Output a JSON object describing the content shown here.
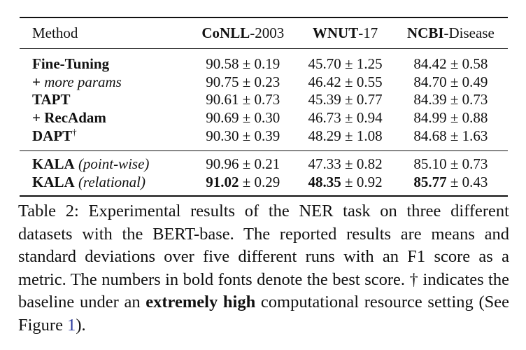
{
  "table": {
    "headers": {
      "method": "Method",
      "datasets": [
        {
          "bold": "Co",
          "rest": "NLL-2003",
          "boldTail": "NLL",
          "tail": "-2003"
        },
        {
          "bold": "WNUT",
          "tail": "-17"
        },
        {
          "bold": "NCBI",
          "tail": "-Disease"
        }
      ]
    },
    "rows": [
      {
        "name": "Fine-Tuning",
        "name_style": "bold",
        "note": "",
        "values": [
          {
            "mean": "90.58",
            "sd": "± 0.19",
            "bold": false
          },
          {
            "mean": "45.70",
            "sd": "± 1.25",
            "bold": false
          },
          {
            "mean": "84.42",
            "sd": "± 0.58",
            "bold": false
          }
        ]
      },
      {
        "name": "+ ",
        "name_style": "bold",
        "note": "more params",
        "values": [
          {
            "mean": "90.75",
            "sd": "± 0.23",
            "bold": false
          },
          {
            "mean": "46.42",
            "sd": "± 0.55",
            "bold": false
          },
          {
            "mean": "84.70",
            "sd": "± 0.49",
            "bold": false
          }
        ]
      },
      {
        "name": "TAPT",
        "name_style": "bold",
        "note": "",
        "values": [
          {
            "mean": "90.61",
            "sd": "± 0.73",
            "bold": false
          },
          {
            "mean": "45.39",
            "sd": "± 0.77",
            "bold": false
          },
          {
            "mean": "84.39",
            "sd": "± 0.73",
            "bold": false
          }
        ]
      },
      {
        "name": "+ RecAdam",
        "name_style": "bold",
        "note": "",
        "values": [
          {
            "mean": "90.69",
            "sd": "± 0.30",
            "bold": false
          },
          {
            "mean": "46.73",
            "sd": "± 0.94",
            "bold": false
          },
          {
            "mean": "84.99",
            "sd": "± 0.88",
            "bold": false
          }
        ]
      },
      {
        "name": "DAPT",
        "name_style": "bold",
        "note": "",
        "sup": "†",
        "values": [
          {
            "mean": "90.30",
            "sd": "± 0.39",
            "bold": false
          },
          {
            "mean": "48.29",
            "sd": "± 1.08",
            "bold": false
          },
          {
            "mean": "84.68",
            "sd": "± 1.63",
            "bold": false
          }
        ]
      },
      {
        "name": "KALA",
        "name_style": "bold",
        "note": "(point-wise)",
        "values": [
          {
            "mean": "90.96",
            "sd": "± 0.21",
            "bold": false
          },
          {
            "mean": "47.33",
            "sd": "± 0.82",
            "bold": false
          },
          {
            "mean": "85.10",
            "sd": "± 0.73",
            "bold": false
          }
        ]
      },
      {
        "name": "KALA",
        "name_style": "bold",
        "note": "(relational)",
        "values": [
          {
            "mean": "91.02",
            "sd": "± 0.29",
            "bold": true
          },
          {
            "mean": "48.35",
            "sd": "± 0.92",
            "bold": true
          },
          {
            "mean": "85.77",
            "sd": "± 0.43",
            "bold": true
          }
        ]
      }
    ]
  },
  "caption": {
    "label": "Table 2:",
    "text_1": " Experimental results of the NER task on three different datasets with the BERT-base. The reported results are means and standard deviations over five different runs with an F1 score as a metric. The numbers in bold fonts denote the best score. † indicates the baseline under an ",
    "emphasis": "extremely high",
    "text_2": " computational resource setting (See Figure ",
    "figure_ref": "1",
    "text_3": ")."
  }
}
